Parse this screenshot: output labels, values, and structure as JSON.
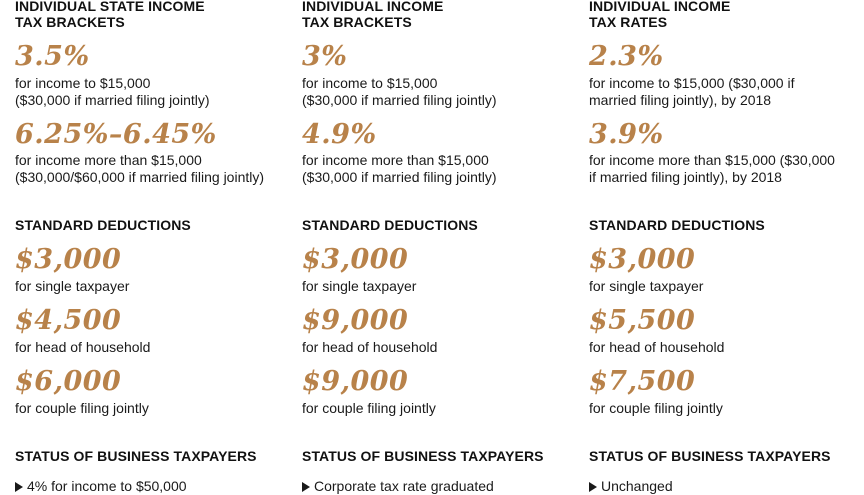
{
  "columns": [
    {
      "heading": [
        "INDIVIDUAL STATE INCOME",
        "TAX BRACKETS"
      ],
      "rates": [
        {
          "value": "3.5%",
          "desc": [
            "for income to $15,000",
            "($30,000 if married filing jointly)"
          ]
        },
        {
          "value": "6.25%–6.45%",
          "desc": [
            "for income more than $15,000",
            "($30,000/$60,000 if married filing jointly)"
          ]
        }
      ],
      "deductions_heading": "STANDARD DEDUCTIONS",
      "deductions": [
        {
          "value": "$3,000",
          "desc": "for single taxpayer"
        },
        {
          "value": "$4,500",
          "desc": "for head of household"
        },
        {
          "value": "$6,000",
          "desc": "for couple filing jointly"
        }
      ],
      "business_heading": "STATUS OF BUSINESS TAXPAYERS",
      "business_bullet": "4% for income to $50,000"
    },
    {
      "heading": [
        "INDIVIDUAL INCOME",
        "TAX BRACKETS"
      ],
      "rates": [
        {
          "value": "3%",
          "desc": [
            "for income to $15,000",
            "($30,000 if married filing jointly)"
          ]
        },
        {
          "value": "4.9%",
          "desc": [
            "for income more than $15,000",
            "($30,000 if married filing jointly)"
          ]
        }
      ],
      "deductions_heading": "STANDARD DEDUCTIONS",
      "deductions": [
        {
          "value": "$3,000",
          "desc": "for single taxpayer"
        },
        {
          "value": "$9,000",
          "desc": "for head of household"
        },
        {
          "value": "$9,000",
          "desc": "for couple filing jointly"
        }
      ],
      "business_heading": "STATUS OF BUSINESS TAXPAYERS",
      "business_bullet": "Corporate tax rate graduated"
    },
    {
      "heading": [
        "INDIVIDUAL INCOME",
        "TAX RATES"
      ],
      "rates": [
        {
          "value": "2.3%",
          "desc": [
            "for income to $15,000 ($30,000 if",
            "married filing jointly), by 2018"
          ]
        },
        {
          "value": "3.9%",
          "desc": [
            "for income more than $15,000 ($30,000",
            "if married filing jointly), by 2018"
          ]
        }
      ],
      "deductions_heading": "STANDARD DEDUCTIONS",
      "deductions": [
        {
          "value": "$3,000",
          "desc": "for single taxpayer"
        },
        {
          "value": "$5,500",
          "desc": "for head of household"
        },
        {
          "value": "$7,500",
          "desc": "for couple filing jointly"
        }
      ],
      "business_heading": "STATUS OF BUSINESS TAXPAYERS",
      "business_bullet": "Unchanged"
    }
  ],
  "colors": {
    "accent": "#b8824a",
    "text": "#1a1a1a"
  }
}
